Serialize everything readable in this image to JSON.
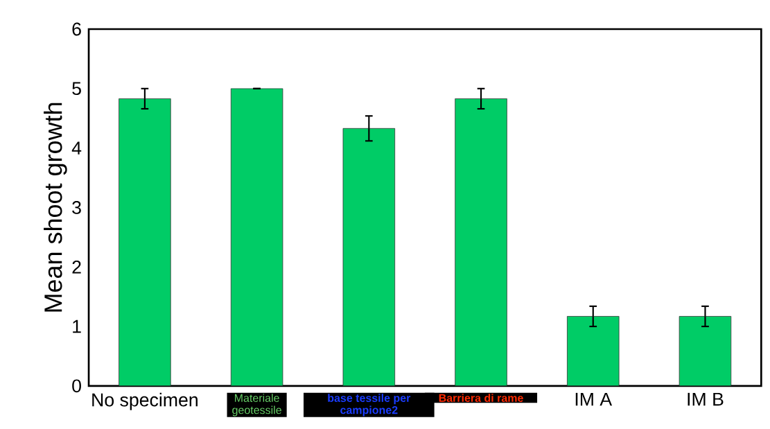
{
  "chart_data": {
    "type": "bar",
    "ylabel": "Mean shoot growth",
    "categories": [
      "No specimen",
      "Materiale geotessile",
      "base tessile per campione2",
      "Barriera di rame",
      "IM A",
      "IM B"
    ],
    "values": [
      4.83,
      5.0,
      4.33,
      4.83,
      1.17,
      1.17
    ],
    "errors": [
      0.17,
      0,
      0.21,
      0.17,
      0.17,
      0.17
    ],
    "color": "#00cc66",
    "ylim": [
      0,
      6
    ],
    "yticks": [
      0,
      1,
      2,
      3,
      4,
      5,
      6
    ]
  }
}
